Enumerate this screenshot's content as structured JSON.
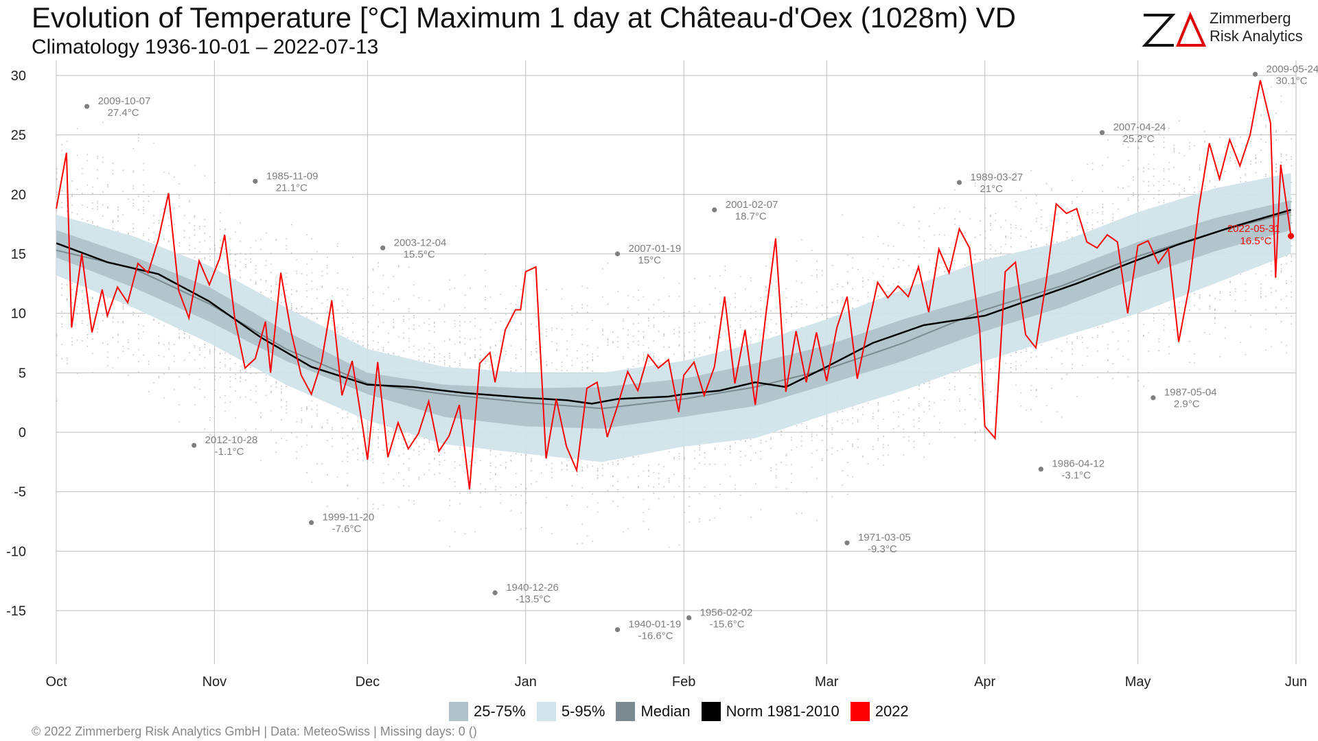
{
  "title": "Evolution of Temperature [°C] Maximum 1 day at Château-d'Oex (1028m) VD",
  "subtitle": "Climatology 1936-10-01 – 2022-07-13",
  "logo": {
    "line1": "Zimmerberg",
    "line2": "Risk Analytics"
  },
  "footer": "©  2022 Zimmerberg Risk Analytics GmbH | Data: MeteoSwiss | Missing days: 0 ()",
  "colors": {
    "band_25_75": "#b0c3cb",
    "band_5_95": "#d1e3ea",
    "median": "#7a8a90",
    "norm": "#000000",
    "year2022": "#ff0000",
    "record": "#7f7f7f",
    "grid": "#bdbdbd"
  },
  "legend": [
    {
      "label": "25-75%",
      "color": "#b0c3cb"
    },
    {
      "label": "5-95%",
      "color": "#d1e3ea"
    },
    {
      "label": "Median",
      "color": "#7a8a90"
    },
    {
      "label": "Norm 1981-2010",
      "color": "#000000"
    },
    {
      "label": "2022",
      "color": "#ff0000"
    }
  ],
  "chart_data": {
    "type": "line",
    "ylim": [
      -17.5,
      31
    ],
    "yticks": [
      30,
      25,
      20,
      15,
      10,
      5,
      0,
      -5,
      -10,
      -15
    ],
    "month_ticks": [
      {
        "label": "Oct",
        "day": 0
      },
      {
        "label": "Nov",
        "day": 31
      },
      {
        "label": "Dec",
        "day": 61
      },
      {
        "label": "Jan",
        "day": 92
      },
      {
        "label": "Feb",
        "day": 123
      },
      {
        "label": "Mar",
        "day": 151
      },
      {
        "label": "Apr",
        "day": 182
      },
      {
        "label": "May",
        "day": 212
      },
      {
        "label": "Jun",
        "day": 243
      }
    ],
    "bands_x": [
      0,
      15,
      30,
      45,
      61,
      76,
      92,
      107,
      123,
      137,
      151,
      166,
      182,
      197,
      212,
      227,
      242
    ],
    "p5": [
      13.2,
      10.5,
      7.5,
      4.0,
      1.0,
      -1.0,
      -1.8,
      -2.5,
      -1.2,
      -0.5,
      1.5,
      3.5,
      6.0,
      8.0,
      10.0,
      12.5,
      15.0
    ],
    "p25": [
      14.7,
      12.2,
      9.3,
      6.0,
      3.2,
      1.3,
      0.5,
      0.3,
      1.3,
      2.2,
      4.0,
      6.0,
      8.5,
      10.5,
      13.0,
      15.2,
      17.0
    ],
    "p75": [
      17.0,
      14.8,
      12.2,
      8.5,
      5.0,
      4.0,
      3.7,
      3.8,
      4.5,
      5.8,
      7.3,
      9.5,
      11.5,
      13.5,
      16.0,
      18.0,
      19.5
    ],
    "p95": [
      18.3,
      16.5,
      14.0,
      10.5,
      7.0,
      5.5,
      5.0,
      5.0,
      6.0,
      7.5,
      9.5,
      12.0,
      14.5,
      16.0,
      18.5,
      20.5,
      21.8
    ],
    "median_x": [
      0,
      15,
      30,
      45,
      61,
      76,
      92,
      107,
      123,
      137,
      151,
      166,
      182,
      197,
      212,
      227,
      242
    ],
    "median_y": [
      15.3,
      13.8,
      10.8,
      7.0,
      4.1,
      3.2,
      2.5,
      2.0,
      2.8,
      3.8,
      5.3,
      7.5,
      10.3,
      12.3,
      14.8,
      16.8,
      18.5
    ],
    "norm_x": [
      0,
      10,
      20,
      30,
      40,
      50,
      61,
      70,
      80,
      92,
      100,
      105,
      110,
      115,
      120,
      123,
      130,
      137,
      143,
      151,
      160,
      170,
      182,
      190,
      200,
      212,
      220,
      230,
      242
    ],
    "norm_y": [
      15.9,
      14.3,
      13.3,
      11.0,
      8.0,
      5.5,
      4.0,
      3.8,
      3.3,
      2.9,
      2.7,
      2.4,
      2.8,
      2.9,
      3.0,
      3.2,
      3.5,
      4.2,
      3.8,
      5.5,
      7.5,
      9.0,
      9.8,
      11.0,
      12.5,
      14.5,
      15.8,
      17.2,
      18.7
    ],
    "series_2022_x": [
      0,
      2,
      3,
      5,
      7,
      9,
      10,
      12,
      14,
      16,
      18,
      20,
      22,
      24,
      26,
      28,
      30,
      32,
      33,
      35,
      37,
      39,
      41,
      42,
      44,
      46,
      48,
      50,
      52,
      54,
      56,
      58,
      60,
      61,
      63,
      65,
      67,
      69,
      71,
      73,
      75,
      77,
      79,
      81,
      83,
      85,
      86,
      88,
      90,
      91,
      92,
      94,
      96,
      98,
      100,
      102,
      104,
      106,
      108,
      110,
      112,
      114,
      116,
      118,
      120,
      122,
      123,
      125,
      127,
      129,
      131,
      133,
      135,
      137,
      139,
      141,
      143,
      145,
      147,
      149,
      151,
      153,
      155,
      157,
      159,
      161,
      163,
      165,
      167,
      169,
      171,
      173,
      175,
      177,
      179,
      181,
      182,
      184,
      186,
      188,
      190,
      192,
      194,
      196,
      198,
      200,
      202,
      204,
      206,
      208,
      210,
      212,
      214,
      216,
      218,
      220,
      222,
      224,
      226,
      228,
      230,
      232,
      234,
      236,
      238,
      239,
      240,
      242
    ],
    "series_2022_y": [
      18.8,
      23.5,
      8.8,
      15.0,
      8.4,
      12.0,
      9.8,
      12.2,
      10.9,
      14.2,
      13.4,
      16.2,
      20.1,
      11.9,
      9.6,
      14.4,
      12.4,
      14.6,
      16.6,
      9.5,
      5.4,
      6.2,
      9.3,
      5.0,
      13.4,
      8.5,
      4.8,
      3.2,
      5.9,
      11.1,
      3.1,
      6.0,
      0.6,
      -2.3,
      5.9,
      -2.1,
      0.8,
      -1.4,
      -0.1,
      2.6,
      -1.6,
      -0.3,
      2.3,
      -4.8,
      5.8,
      6.7,
      4.2,
      8.6,
      10.3,
      10.3,
      13.5,
      13.9,
      -2.2,
      2.8,
      -1.2,
      -3.2,
      3.7,
      4.2,
      -0.4,
      2.2,
      5.1,
      3.5,
      6.5,
      5.4,
      6.1,
      1.7,
      4.8,
      5.9,
      3.1,
      5.5,
      11.4,
      4.1,
      8.6,
      2.3,
      9.6,
      16.3,
      3.4,
      8.5,
      4.2,
      8.4,
      4.3,
      8.8,
      11.4,
      4.5,
      8.6,
      12.6,
      11.3,
      12.3,
      11.4,
      13.9,
      10.1,
      15.4,
      13.4,
      17.1,
      15.5,
      8.6,
      0.5,
      -0.5,
      13.5,
      14.3,
      8.2,
      7.1,
      12.6,
      19.2,
      18.4,
      18.8,
      16.0,
      15.5,
      16.6,
      16.0,
      10.0,
      15.7,
      16.1,
      14.2,
      15.4,
      7.6,
      12.1,
      19.0,
      24.3,
      21.3,
      24.6,
      22.4,
      25.0,
      29.6,
      26.0,
      13.0,
      22.5,
      16.5
    ],
    "last_point": {
      "day": 242,
      "value": 16.5,
      "label_date": "2022-05-31",
      "label_value": "16.5°C"
    },
    "records": [
      {
        "date": "2009-10-07",
        "value_label": "27.4°C",
        "day": 6,
        "value": 27.4
      },
      {
        "date": "1985-11-09",
        "value_label": "21.1°C",
        "day": 39,
        "value": 21.1
      },
      {
        "date": "2003-12-04",
        "value_label": "15.5°C",
        "day": 64,
        "value": 15.5
      },
      {
        "date": "2007-01-19",
        "value_label": "15°C",
        "day": 110,
        "value": 15.0
      },
      {
        "date": "2001-02-07",
        "value_label": "18.7°C",
        "day": 129,
        "value": 18.7
      },
      {
        "date": "1989-03-27",
        "value_label": "21°C",
        "day": 177,
        "value": 21.0
      },
      {
        "date": "2007-04-24",
        "value_label": "25.2°C",
        "day": 205,
        "value": 25.2
      },
      {
        "date": "2009-05-24",
        "value_label": "30.1°C",
        "day": 235,
        "value": 30.1
      },
      {
        "date": "2012-10-28",
        "value_label": "-1.1°C",
        "day": 27,
        "value": -1.1
      },
      {
        "date": "1999-11-20",
        "value_label": "-7.6°C",
        "day": 50,
        "value": -7.6
      },
      {
        "date": "1940-12-26",
        "value_label": "-13.5°C",
        "day": 86,
        "value": -13.5
      },
      {
        "date": "1940-01-19",
        "value_label": "-16.6°C",
        "day": 110,
        "value": -16.6
      },
      {
        "date": "1956-02-02",
        "value_label": "-15.6°C",
        "day": 124,
        "value": -15.6
      },
      {
        "date": "1971-03-05",
        "value_label": "-9.3°C",
        "day": 155,
        "value": -9.3
      },
      {
        "date": "1986-04-12",
        "value_label": "-3.1°C",
        "day": 193,
        "value": -3.1
      },
      {
        "date": "1987-05-04",
        "value_label": "2.9°C",
        "day": 215,
        "value": 2.9
      }
    ]
  }
}
